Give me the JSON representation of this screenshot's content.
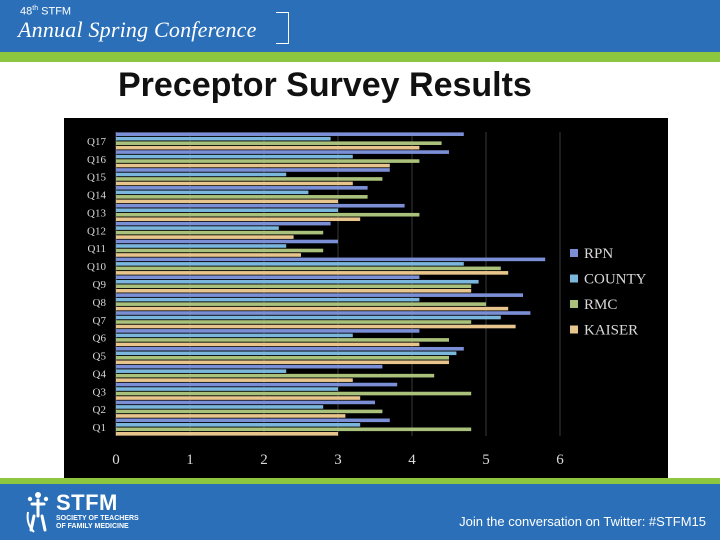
{
  "header": {
    "edition_number": "48",
    "edition_suffix": "th",
    "edition_org": "STFM",
    "conference_title": "Annual Spring Conference"
  },
  "slide": {
    "title": "Preceptor Survey Results"
  },
  "colors": {
    "header_blue": "#2a6fb8",
    "accent_green": "#8dc63f",
    "chart_background": "#000000"
  },
  "chart_data": {
    "type": "bar",
    "orientation": "horizontal",
    "categories": [
      "Q1",
      "Q2",
      "Q3",
      "Q4",
      "Q5",
      "Q6",
      "Q7",
      "Q8",
      "Q9",
      "Q10",
      "Q11",
      "Q12",
      "Q13",
      "Q14",
      "Q15",
      "Q16",
      "Q17"
    ],
    "series": [
      {
        "name": "RPN",
        "color": "#7b8fd6",
        "values": [
          3.7,
          3.5,
          3.8,
          3.6,
          4.7,
          4.1,
          5.6,
          5.5,
          4.1,
          5.8,
          3.0,
          2.9,
          3.9,
          3.4,
          3.7,
          4.5,
          4.7
        ]
      },
      {
        "name": "COUNTY",
        "color": "#7bb6dc",
        "values": [
          3.3,
          2.8,
          3.0,
          2.3,
          4.6,
          3.2,
          5.2,
          4.1,
          4.9,
          4.7,
          2.3,
          2.2,
          3.0,
          2.6,
          2.3,
          3.2,
          2.9
        ]
      },
      {
        "name": "RMC",
        "color": "#a9c17a",
        "values": [
          4.8,
          3.6,
          4.8,
          4.3,
          4.5,
          4.5,
          4.8,
          5.0,
          4.8,
          5.2,
          2.8,
          2.8,
          4.1,
          3.4,
          3.6,
          4.1,
          4.4
        ]
      },
      {
        "name": "KAISER",
        "color": "#e8c58c",
        "values": [
          3.0,
          3.1,
          3.3,
          3.2,
          4.5,
          4.1,
          5.4,
          5.3,
          4.8,
          5.3,
          2.5,
          2.4,
          3.3,
          3.0,
          3.2,
          3.7,
          4.1
        ]
      }
    ],
    "x_ticks": [
      "0",
      "1",
      "2",
      "3",
      "4",
      "5",
      "6"
    ],
    "xlim": [
      0,
      6
    ],
    "grid": true,
    "legend_position": "right"
  },
  "footer": {
    "logo_text": "STFM",
    "logo_subtitle": "SOCIETY OF TEACHERS OF FAMILY MEDICINE",
    "twitter_text": "Join the conversation on Twitter: #STFM15"
  }
}
